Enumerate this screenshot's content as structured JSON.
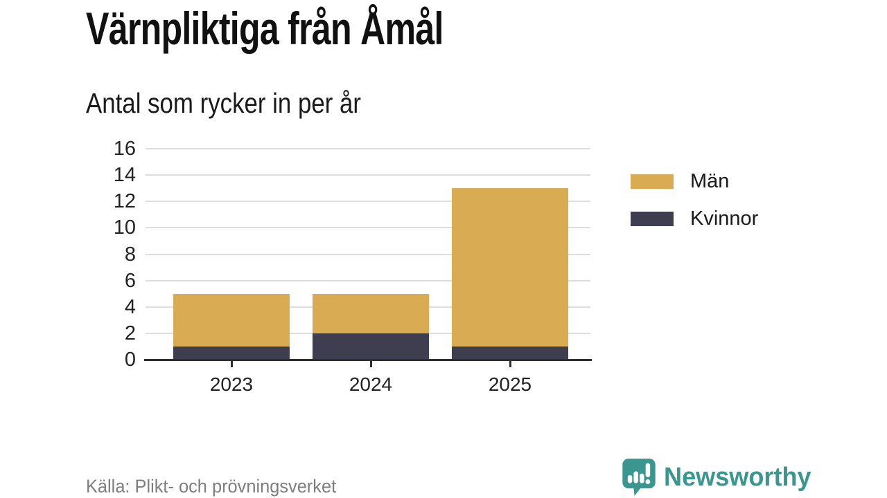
{
  "header": {
    "title": "Värnpliktiga från Åmål",
    "subtitle": "Antal som rycker in per år"
  },
  "chart_data": {
    "type": "bar",
    "stacked": true,
    "title": "Värnpliktiga från Åmål",
    "subtitle": "Antal som rycker in per år",
    "categories": [
      "2023",
      "2024",
      "2025"
    ],
    "series": [
      {
        "name": "Män",
        "color": "#d9ac54",
        "values": [
          4,
          3,
          12
        ]
      },
      {
        "name": "Kvinnor",
        "color": "#3f3d50",
        "values": [
          1,
          2,
          1
        ]
      }
    ],
    "stack_bottom_to_top": [
      "Kvinnor",
      "Män"
    ],
    "totals": [
      5,
      5,
      13
    ],
    "xlabel": "",
    "ylabel": "",
    "ylim": [
      0,
      16
    ],
    "ytick_step": 2,
    "yticks": [
      0,
      2,
      4,
      6,
      8,
      10,
      12,
      14,
      16
    ],
    "grid": true,
    "legend_position": "right"
  },
  "legend": {
    "items": [
      {
        "label": "Män",
        "color": "#d9ac54"
      },
      {
        "label": "Kvinnor",
        "color": "#3f3d50"
      }
    ]
  },
  "footer": {
    "source": "Källa: Plikt- och prövningsverket",
    "brand": "Newsworthy"
  },
  "colors": {
    "men": "#d9ac54",
    "women": "#3f3d50",
    "brand_teal": "#3a9790",
    "gridline": "#dddddd",
    "axis": "#2e2e2e",
    "muted_text": "#7e7e7e"
  }
}
